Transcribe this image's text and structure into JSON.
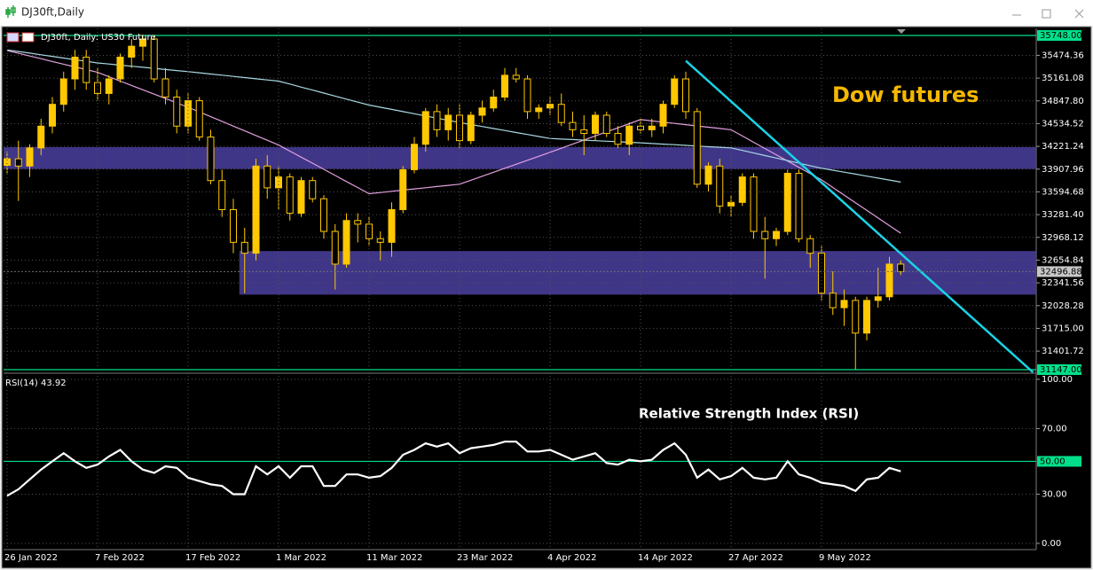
{
  "window_title": "DJ30ft,Daily",
  "chart_data": [
    {
      "type": "candlestick",
      "subtitle": "DJ30ft, Daily:  US30 Future",
      "annotation": "Dow futures",
      "open": [
        33960,
        34050,
        33950,
        34200,
        34500,
        34800,
        35150,
        35450,
        35100,
        34950,
        35150,
        35450,
        35600,
        35700,
        35150,
        34900,
        34500,
        34850,
        34350,
        33750,
        33350,
        32900,
        32750,
        33950,
        33650,
        33800,
        33300,
        33750,
        33500,
        33050,
        32600,
        33200,
        33150,
        32950,
        32900,
        33350,
        33900,
        34250,
        34700,
        34450,
        34650,
        34300,
        34650,
        34750,
        34900,
        35200,
        35150,
        34700,
        34750,
        34800,
        34550,
        34450,
        34400,
        34650,
        34400,
        34250,
        34500,
        34450,
        34500,
        34800,
        35150,
        34700,
        33700,
        33950,
        33400,
        33450,
        33800,
        33050,
        32950,
        33050,
        33850,
        32950,
        32750,
        32200,
        32000,
        32100,
        31650,
        32100,
        32150,
        32600
      ],
      "high": [
        34150,
        34300,
        34250,
        34600,
        34900,
        35250,
        35550,
        35550,
        35300,
        35200,
        35500,
        35700,
        35760,
        35740,
        35300,
        35000,
        34950,
        34900,
        34450,
        33900,
        33500,
        33100,
        34050,
        34100,
        33950,
        33850,
        33800,
        33800,
        33550,
        33150,
        33300,
        33300,
        33250,
        33050,
        33450,
        33950,
        34350,
        34750,
        34800,
        34750,
        34800,
        34700,
        34850,
        35000,
        35300,
        35300,
        35200,
        34800,
        34900,
        34950,
        34700,
        34650,
        34700,
        34700,
        34500,
        34550,
        34600,
        34600,
        34850,
        35200,
        35250,
        34750,
        34000,
        34050,
        33550,
        33850,
        33850,
        33250,
        33100,
        33900,
        33900,
        33000,
        32850,
        32500,
        32250,
        32150,
        32150,
        32550,
        32700,
        32650
      ],
      "low": [
        33850,
        33470,
        33800,
        34100,
        34400,
        34700,
        35000,
        35000,
        34850,
        34800,
        35100,
        35300,
        35400,
        35100,
        34800,
        34400,
        34400,
        34300,
        33700,
        33250,
        32750,
        32200,
        32650,
        33500,
        33350,
        33200,
        33250,
        33450,
        32950,
        32250,
        32550,
        32900,
        32850,
        32650,
        32700,
        33300,
        33850,
        34150,
        34350,
        34300,
        34200,
        34250,
        34550,
        34700,
        34850,
        35100,
        34600,
        34600,
        34650,
        34500,
        34350,
        34100,
        34300,
        34350,
        34200,
        34100,
        34400,
        34350,
        34400,
        34750,
        34600,
        33650,
        33600,
        33300,
        33250,
        33400,
        32950,
        32400,
        32850,
        33000,
        32900,
        32550,
        32100,
        31900,
        31750,
        31150,
        31550,
        32000,
        32100,
        32450
      ],
      "close": [
        34050,
        33950,
        34200,
        34500,
        34800,
        35150,
        35450,
        35100,
        34950,
        35150,
        35450,
        35600,
        35700,
        35150,
        34900,
        34500,
        34850,
        34350,
        33750,
        33350,
        32900,
        32750,
        33950,
        33650,
        33800,
        33300,
        33750,
        33500,
        33050,
        32600,
        33200,
        33150,
        32950,
        32900,
        33350,
        33900,
        34250,
        34700,
        34450,
        34650,
        34300,
        34650,
        34750,
        34900,
        35200,
        35150,
        34700,
        34750,
        34800,
        34550,
        34450,
        34400,
        34650,
        34400,
        34250,
        34500,
        34450,
        34500,
        34800,
        35150,
        34700,
        33700,
        33950,
        33400,
        33450,
        33800,
        33050,
        32950,
        33050,
        33850,
        32950,
        32750,
        32200,
        32000,
        32100,
        31650,
        32100,
        32150,
        32600,
        32496.88
      ],
      "up_color": "#ffc800",
      "down_color": "#000000",
      "series": [
        {
          "color": "#e2a0e0",
          "values": [
            35540,
            35503,
            35465,
            35428,
            35390,
            35353,
            35315,
            35278,
            35240,
            35180,
            35120,
            35060,
            35000,
            34940,
            34880,
            34820,
            34760,
            34695,
            34630,
            34565,
            34500,
            34435,
            34370,
            34305,
            34240,
            34156,
            34072,
            33989,
            33905,
            33821,
            33737,
            33654,
            33570,
            33586,
            33603,
            33619,
            33635,
            33651,
            33668,
            33684,
            33700,
            33755,
            33810,
            33865,
            33920,
            33975,
            34030,
            34085,
            34140,
            34196,
            34252,
            34309,
            34365,
            34421,
            34477,
            34534,
            34590,
            34572,
            34555,
            34538,
            34520,
            34502,
            34485,
            34468,
            34450,
            34364,
            34277,
            34191,
            34105,
            34019,
            33932,
            33846,
            33760,
            33655,
            33550,
            33445,
            33340,
            33235,
            33130,
            33025
          ]
        },
        {
          "color": "#a8d8e2",
          "values": [
            35550,
            35527,
            35505,
            35482,
            35460,
            35437,
            35415,
            35392,
            35370,
            35355,
            35340,
            35325,
            35310,
            35295,
            35280,
            35265,
            35250,
            35234,
            35217,
            35201,
            35185,
            35169,
            35152,
            35136,
            35120,
            35079,
            35037,
            34996,
            34955,
            34914,
            34872,
            34831,
            34790,
            34760,
            34730,
            34700,
            34670,
            34640,
            34610,
            34580,
            34550,
            34522,
            34495,
            34467,
            34440,
            34412,
            34385,
            34357,
            34330,
            34322,
            34315,
            34307,
            34300,
            34292,
            34285,
            34277,
            34270,
            34261,
            34252,
            34244,
            34235,
            34226,
            34217,
            34209,
            34200,
            34165,
            34130,
            34095,
            34060,
            34025,
            33990,
            33955,
            33920,
            33893,
            33866,
            33839,
            33811,
            33784,
            33757,
            33730
          ]
        }
      ],
      "zones": [
        {
          "low": 33910,
          "high": 34210,
          "start": 0,
          "color": "#4b3fa0"
        },
        {
          "low": 32180,
          "high": 32780,
          "start": 21,
          "color": "#4b3fa0"
        }
      ],
      "trendline": {
        "x": [
          60,
          90.7
        ],
        "y": [
          35400,
          31110
        ],
        "color": "#19d3e6"
      },
      "ylim": [
        31110,
        35846
      ],
      "yticks": [
        35474.36,
        35161.08,
        {
          "value": 34847.8,
          "label": "34847.80"
        },
        34534.52,
        34221.24,
        33907.96,
        33594.68,
        {
          "value": 33281.4,
          "label": "33281.40"
        },
        32968.12,
        32654.84,
        32341.56,
        32028.28,
        {
          "value": 31715,
          "label": "31715.00"
        },
        31401.72
      ],
      "levels": [
        {
          "value": 35748,
          "label": "35748.00",
          "color": "#00e08a"
        },
        {
          "value": 31147,
          "label": "31147.00",
          "color": "#00e08a"
        }
      ],
      "last_price": 32496.88,
      "grid": true
    },
    {
      "type": "line",
      "title": "Relative Strength Index (RSI)",
      "label": "RSI(14) 43.92",
      "categories": [
        "26 Jan 2022",
        null,
        null,
        null,
        null,
        null,
        null,
        null,
        "7 Feb 2022",
        null,
        null,
        null,
        null,
        null,
        null,
        null,
        "17 Feb 2022",
        null,
        null,
        null,
        null,
        null,
        null,
        null,
        "1 Mar 2022",
        null,
        null,
        null,
        null,
        null,
        null,
        null,
        "11 Mar 2022",
        null,
        null,
        null,
        null,
        null,
        null,
        null,
        "23 Mar 2022",
        null,
        null,
        null,
        null,
        null,
        null,
        null,
        "4 Apr 2022",
        null,
        null,
        null,
        null,
        null,
        null,
        null,
        "14 Apr 2022",
        null,
        null,
        null,
        null,
        null,
        null,
        null,
        "27 Apr 2022",
        null,
        null,
        null,
        null,
        null,
        null,
        null,
        "9 May 2022",
        null,
        null,
        null,
        null,
        null,
        null,
        null
      ],
      "series": [
        {
          "color": "#ffffff",
          "values": [
            29,
            33,
            39,
            45,
            50,
            55,
            50,
            46,
            48,
            53,
            57,
            50,
            45,
            43,
            47,
            46,
            40,
            38,
            36,
            35,
            30,
            30,
            47,
            42,
            47,
            40,
            47,
            47,
            35,
            35,
            42,
            42,
            40,
            41,
            46,
            54,
            57,
            61,
            59,
            61,
            55,
            58,
            59,
            60,
            62,
            62,
            56,
            56,
            57,
            54,
            51,
            53,
            55,
            49,
            48,
            51,
            50,
            51,
            57,
            61,
            54,
            40,
            45,
            39,
            41,
            46,
            40,
            39,
            40,
            50,
            42,
            40,
            37,
            36,
            35,
            32,
            39,
            40,
            46,
            43.92
          ]
        }
      ],
      "ylim": [
        -3.8,
        103.2
      ],
      "yticks": [
        {
          "value": 100,
          "label": "100.00"
        },
        {
          "value": 70,
          "label": "70.00"
        },
        {
          "value": 30,
          "label": "30.00"
        },
        {
          "value": 0,
          "label": "0.00"
        }
      ],
      "levels": [
        {
          "value": 50,
          "label": "50.00",
          "color": "#00e08a"
        }
      ],
      "grid": true
    }
  ]
}
